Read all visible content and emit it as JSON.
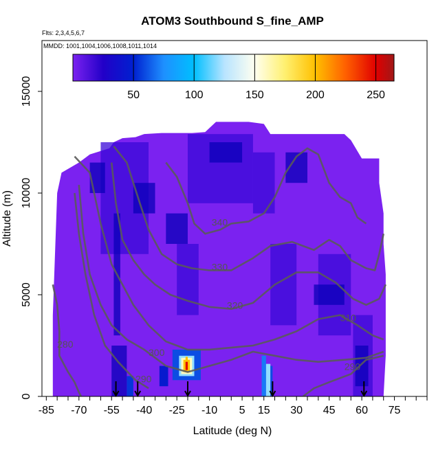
{
  "chart_data": {
    "type": "heatmap",
    "title": "ATOM3 Southbound S_fine_AMP",
    "subtitle_flights": "Flts: 2,3,4,5,6,7",
    "subtitle_dates": "MMDD: 1001,1004,1006,1008,1011,1014",
    "xlabel": "Latitude (deg N)",
    "ylabel": "Altitude (m)",
    "xlim": [
      -87,
      90
    ],
    "ylim": [
      0,
      17500
    ],
    "x_ticks": [
      -85,
      -70,
      -55,
      -40,
      -25,
      -10,
      5,
      15,
      30,
      45,
      60,
      75
    ],
    "x_tick_labels": [
      "-85",
      "-70",
      "-55",
      "-40",
      "-25",
      "-10",
      "5",
      "15",
      "30",
      "45",
      "60",
      "75"
    ],
    "x_minor_ticks": [
      -85,
      -80,
      -75,
      -70,
      -65,
      -60,
      -55,
      -50,
      -45,
      -40,
      -35,
      -30,
      -25,
      -20,
      -15,
      -10,
      -5,
      0,
      5,
      10,
      15,
      20,
      25,
      30,
      35,
      40,
      45,
      50,
      55,
      60,
      65,
      70,
      75,
      80,
      85,
      90
    ],
    "y_ticks": [
      0,
      5000,
      10000,
      15000
    ],
    "y_tick_labels": [
      "0",
      "5000",
      "10000",
      "15000"
    ],
    "colorbar": {
      "min": 0,
      "max": 265,
      "ticks": [
        50,
        100,
        150,
        200,
        250
      ],
      "tick_labels": [
        "50",
        "100",
        "150",
        "200",
        "250"
      ],
      "stops": [
        {
          "value": 0,
          "color": "#7b22f0"
        },
        {
          "value": 25,
          "color": "#2200c8"
        },
        {
          "value": 50,
          "color": "#0020d0"
        },
        {
          "value": 75,
          "color": "#1e90ff"
        },
        {
          "value": 100,
          "color": "#00bfff"
        },
        {
          "value": 125,
          "color": "#b8e4ff"
        },
        {
          "value": 150,
          "color": "#fffff0"
        },
        {
          "value": 175,
          "color": "#fff070"
        },
        {
          "value": 200,
          "color": "#ffc000"
        },
        {
          "value": 225,
          "color": "#ff6000"
        },
        {
          "value": 250,
          "color": "#e00000"
        },
        {
          "value": 265,
          "color": "#a01818"
        }
      ]
    },
    "field_colors": {
      "background": "#7b22f0",
      "enhanced": "#3a0ad8",
      "high": "#0a00b8"
    },
    "domain_envelope": [
      [
        -82,
        0
      ],
      [
        -82,
        4000
      ],
      [
        -81,
        7000
      ],
      [
        -80,
        10000
      ],
      [
        -78,
        11000
      ],
      [
        -70,
        11500
      ],
      [
        -65,
        11900
      ],
      [
        -56,
        12200
      ],
      [
        -54,
        12500
      ],
      [
        -50,
        12700
      ],
      [
        -44,
        12750
      ],
      [
        -40,
        12900
      ],
      [
        -32,
        12950
      ],
      [
        -25,
        12950
      ],
      [
        -18,
        12950
      ],
      [
        -12,
        13000
      ],
      [
        -7,
        13500
      ],
      [
        0,
        13500
      ],
      [
        8,
        13500
      ],
      [
        15,
        13400
      ],
      [
        18,
        12900
      ],
      [
        25,
        12900
      ],
      [
        37,
        12900
      ],
      [
        43,
        12900
      ],
      [
        52,
        12900
      ],
      [
        55,
        12600
      ],
      [
        60,
        11700
      ],
      [
        68,
        11700
      ],
      [
        68,
        10500
      ],
      [
        70,
        9000
      ],
      [
        70,
        7500
      ],
      [
        71,
        6000
      ],
      [
        71,
        2000
      ],
      [
        70,
        0
      ]
    ],
    "enhanced_regions": [
      {
        "lat": [
          -60,
          -38
        ],
        "alt": [
          7000,
          12500
        ],
        "level": "enhanced"
      },
      {
        "lat": [
          -20,
          10
        ],
        "alt": [
          9500,
          12900
        ],
        "level": "enhanced"
      },
      {
        "lat": [
          -25,
          -15
        ],
        "alt": [
          4000,
          7500
        ],
        "level": "enhanced"
      },
      {
        "lat": [
          18,
          30
        ],
        "alt": [
          3500,
          7500
        ],
        "level": "enhanced"
      },
      {
        "lat": [
          40,
          55
        ],
        "alt": [
          3000,
          7000
        ],
        "level": "enhanced"
      },
      {
        "lat": [
          56,
          65
        ],
        "alt": [
          0,
          4000
        ],
        "level": "enhanced"
      },
      {
        "lat": [
          10,
          20
        ],
        "alt": [
          9000,
          12000
        ],
        "level": "enhanced"
      },
      {
        "lat": [
          -54,
          -51
        ],
        "alt": [
          3000,
          9000
        ],
        "level": "high"
      },
      {
        "lat": [
          -55,
          -48
        ],
        "alt": [
          0,
          2500
        ],
        "level": "high"
      },
      {
        "lat": [
          -45,
          -35
        ],
        "alt": [
          9000,
          10500
        ],
        "level": "high"
      },
      {
        "lat": [
          -10,
          5
        ],
        "alt": [
          11500,
          12500
        ],
        "level": "high"
      },
      {
        "lat": [
          25,
          35
        ],
        "alt": [
          10500,
          12000
        ],
        "level": "high"
      },
      {
        "lat": [
          38,
          52
        ],
        "alt": [
          4500,
          5500
        ],
        "level": "high"
      },
      {
        "lat": [
          -30,
          -20
        ],
        "alt": [
          7500,
          9000
        ],
        "level": "high"
      },
      {
        "lat": [
          57,
          63
        ],
        "alt": [
          500,
          2500
        ],
        "level": "high"
      },
      {
        "lat": [
          -65,
          -58
        ],
        "alt": [
          10000,
          11500
        ],
        "level": "high"
      }
    ],
    "hot_cells": [
      {
        "lat": [
          -27,
          -14
        ],
        "alt": [
          800,
          2300
        ],
        "value": 60
      },
      {
        "lat": [
          -24,
          -17
        ],
        "alt": [
          1000,
          2000
        ],
        "value": 120
      },
      {
        "lat": [
          -23,
          -18
        ],
        "alt": [
          1100,
          1900
        ],
        "value": 160
      },
      {
        "lat": [
          -22,
          -19
        ],
        "alt": [
          1200,
          1800
        ],
        "value": 200
      },
      {
        "lat": [
          -21,
          -20
        ],
        "alt": [
          1300,
          1700
        ],
        "value": 250
      },
      {
        "lat": [
          -21,
          -20
        ],
        "alt": [
          1750,
          1950
        ],
        "value": 200
      },
      {
        "lat": [
          14,
          16
        ],
        "alt": [
          0,
          2000
        ],
        "value": 70
      },
      {
        "lat": [
          16,
          18
        ],
        "alt": [
          0,
          1600
        ],
        "value": 120
      },
      {
        "lat": [
          18,
          19
        ],
        "alt": [
          0,
          1500
        ],
        "value": 60
      },
      {
        "lat": [
          -48,
          -45
        ],
        "alt": [
          0,
          1000
        ],
        "value": 55
      },
      {
        "lat": [
          -33,
          -29
        ],
        "alt": [
          500,
          1500
        ],
        "value": 45
      }
    ],
    "contours": [
      {
        "label": "280",
        "label_pos": [
          -80,
          2400
        ],
        "points": [
          [
            -82,
            5500
          ],
          [
            -80,
            4500
          ],
          [
            -79,
            3200
          ],
          [
            -79,
            2000
          ],
          [
            -75,
            1200
          ],
          [
            -72,
            700
          ],
          [
            -70,
            200
          ],
          [
            -69,
            0
          ]
        ]
      },
      {
        "label": "290",
        "label_pos": [
          -44,
          700
        ],
        "points": [
          [
            -72,
            10000
          ],
          [
            -70,
            8000
          ],
          [
            -67,
            6000
          ],
          [
            -63,
            4000
          ],
          [
            -58,
            2500
          ],
          [
            -52,
            1700
          ],
          [
            -44,
            800
          ],
          [
            -38,
            400
          ]
        ]
      },
      {
        "label": "290",
        "label_pos": [
          52,
          1300
        ],
        "points": [
          [
            33,
            0
          ],
          [
            38,
            400
          ],
          [
            45,
            700
          ],
          [
            55,
            1100
          ],
          [
            62,
            1800
          ],
          [
            70,
            2000
          ]
        ]
      },
      {
        "label": "300",
        "label_pos": [
          -38,
          2000
        ],
        "points": [
          [
            -70,
            10400
          ],
          [
            -68,
            8000
          ],
          [
            -65,
            6000
          ],
          [
            -60,
            4500
          ],
          [
            -55,
            3500
          ],
          [
            -48,
            2800
          ],
          [
            -40,
            2300
          ],
          [
            -30,
            1500
          ],
          [
            -20,
            1200
          ],
          [
            -10,
            1500
          ],
          [
            0,
            1800
          ],
          [
            10,
            2200
          ],
          [
            20,
            2000
          ],
          [
            30,
            1800
          ],
          [
            40,
            1700
          ],
          [
            52,
            1800
          ],
          [
            62,
            1900
          ],
          [
            70,
            2200
          ]
        ]
      },
      {
        "label": "310",
        "label_pos": [
          50,
          3700
        ],
        "points": [
          [
            -72,
            11800
          ],
          [
            -65,
            11000
          ],
          [
            -60,
            8500
          ],
          [
            -55,
            6500
          ],
          [
            -50,
            5500
          ],
          [
            -45,
            4500
          ],
          [
            -38,
            3500
          ],
          [
            -30,
            2700
          ],
          [
            -20,
            2300
          ],
          [
            -10,
            2300
          ],
          [
            0,
            2400
          ],
          [
            10,
            2500
          ],
          [
            20,
            2800
          ],
          [
            30,
            3200
          ],
          [
            40,
            3800
          ],
          [
            50,
            4000
          ],
          [
            58,
            3500
          ],
          [
            65,
            3000
          ],
          [
            70,
            2800
          ]
        ]
      },
      {
        "label": "320",
        "label_pos": [
          -2,
          4300
        ],
        "points": [
          [
            -55,
            11500
          ],
          [
            -53,
            9500
          ],
          [
            -50,
            7700
          ],
          [
            -45,
            6700
          ],
          [
            -40,
            6000
          ],
          [
            -35,
            5500
          ],
          [
            -28,
            5000
          ],
          [
            -20,
            4700
          ],
          [
            -10,
            4400
          ],
          [
            0,
            4300
          ],
          [
            10,
            4600
          ],
          [
            20,
            5500
          ],
          [
            30,
            6100
          ],
          [
            40,
            6100
          ],
          [
            48,
            5600
          ],
          [
            56,
            4800
          ],
          [
            62,
            4500
          ],
          [
            68,
            4800
          ],
          [
            71,
            5500
          ]
        ]
      },
      {
        "label": "330",
        "label_pos": [
          -9,
          6200
        ],
        "points": [
          [
            -54,
            12300
          ],
          [
            -48,
            11500
          ],
          [
            -42,
            9500
          ],
          [
            -38,
            8200
          ],
          [
            -32,
            7000
          ],
          [
            -25,
            6500
          ],
          [
            -18,
            6300
          ],
          [
            -10,
            6200
          ],
          [
            0,
            6200
          ],
          [
            10,
            6800
          ],
          [
            18,
            7400
          ],
          [
            28,
            7600
          ],
          [
            38,
            7200
          ],
          [
            45,
            7700
          ],
          [
            50,
            7400
          ],
          [
            55,
            6700
          ],
          [
            62,
            6300
          ],
          [
            66,
            6200
          ],
          [
            68,
            7000
          ],
          [
            70,
            8000
          ]
        ]
      },
      {
        "label": "340",
        "label_pos": [
          -9,
          8400
        ],
        "points": [
          [
            -30,
            11500
          ],
          [
            -25,
            10800
          ],
          [
            -20,
            9500
          ],
          [
            -17,
            8500
          ],
          [
            -12,
            8000
          ],
          [
            -5,
            8200
          ],
          [
            0,
            8500
          ],
          [
            8,
            8600
          ],
          [
            15,
            9000
          ],
          [
            20,
            9800
          ],
          [
            25,
            11000
          ],
          [
            30,
            11800
          ],
          [
            35,
            12200
          ],
          [
            40,
            11900
          ],
          [
            45,
            10500
          ],
          [
            50,
            9800
          ],
          [
            55,
            9500
          ],
          [
            58,
            8800
          ],
          [
            62,
            8500
          ]
        ]
      }
    ],
    "flight_markers": [
      -53,
      -43,
      -20,
      19,
      61
    ]
  }
}
